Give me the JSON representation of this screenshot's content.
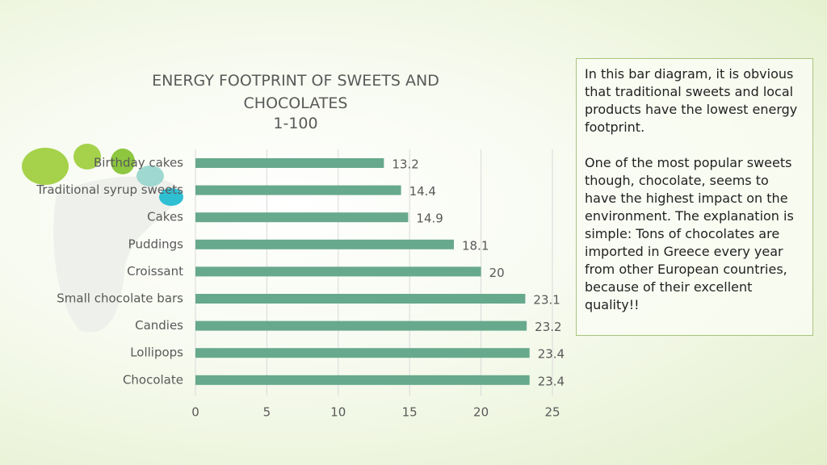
{
  "chart_data": {
    "type": "barh",
    "title": "ENERGY FOOTPRINT OF SWEETS AND CHOCOLATES",
    "subtitle": "1-100",
    "categories": [
      "Birthday cakes",
      "Traditional syrup sweets",
      "Cakes",
      "Puddings",
      "Croissant",
      "Small chocolate bars",
      "Candies",
      "Lollipops",
      "Chocolate"
    ],
    "values": [
      13.2,
      14.4,
      14.9,
      18.1,
      20,
      23.1,
      23.2,
      23.4,
      23.4
    ],
    "color": "#67a98c",
    "xlim": [
      0,
      25
    ],
    "xticks": [
      0,
      5,
      10,
      15,
      20,
      25
    ],
    "grid": true
  },
  "note": {
    "paragraphs": [
      "In this bar diagram, it is obvious that traditional sweets and local products have the lowest energy footprint.",
      "One of the most popular sweets though, chocolate, seems to have the highest impact on the environment. The explanation is simple: Tons of chocolates are imported in Greece every year from other European countries, because of their excellent quality!!"
    ]
  }
}
